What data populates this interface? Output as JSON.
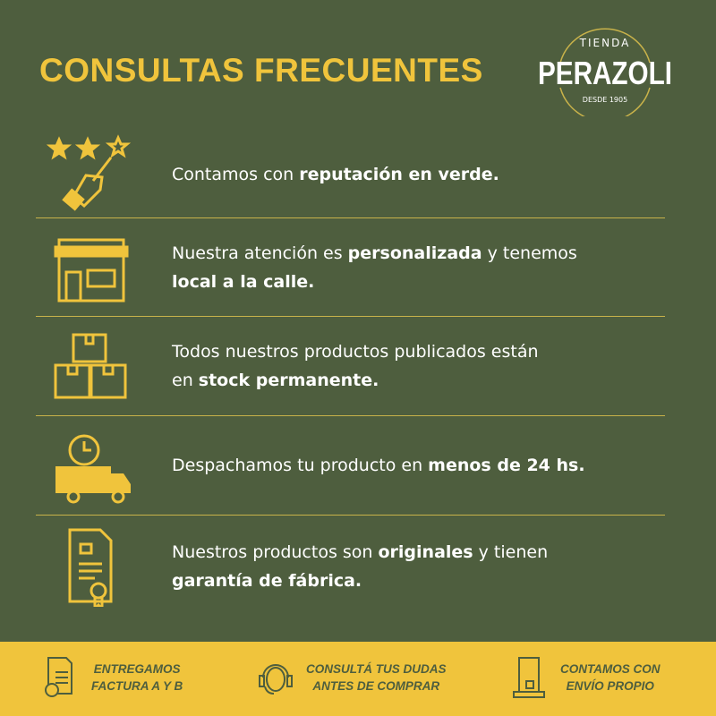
{
  "header": {
    "title": "CONSULTAS FRECUENTES"
  },
  "logo": {
    "top": "TIENDA",
    "name": "PERAZOLI",
    "bottom": "DESDE 1905"
  },
  "items": [
    {
      "icon": "rating-stars-hand-icon",
      "pre": "Contamos con ",
      "bold": "reputación en verde.",
      "mid": "",
      "bold2": ""
    },
    {
      "icon": "storefront-icon",
      "pre": "Nuestra atención es ",
      "bold": "personalizada",
      "mid": " y tenemos",
      "bold2": "local a la calle."
    },
    {
      "icon": "boxes-icon",
      "pre": "Todos nuestros productos publicados están",
      "bold": "",
      "mid": "en ",
      "bold2": "stock permanente."
    },
    {
      "icon": "delivery-truck-clock-icon",
      "pre": "Despachamos tu producto en ",
      "bold": "menos de 24 hs.",
      "mid": "",
      "bold2": ""
    },
    {
      "icon": "certificate-icon",
      "pre": "Nuestros productos son ",
      "bold": "originales",
      "mid": " y tienen",
      "bold2": "garantía de fábrica."
    }
  ],
  "footer": [
    {
      "icon": "invoice-icon",
      "l1": "ENTREGAMOS",
      "l2": "FACTURA A Y B"
    },
    {
      "icon": "headset-support-icon",
      "l1": "CONSULTÁ TUS DUDAS",
      "l2": "ANTES DE COMPRAR"
    },
    {
      "icon": "door-package-icon",
      "l1": "CONTAMOS CON",
      "l2": "ENVÍO PROPIO"
    }
  ],
  "colors": {
    "background": "#4e5e3e",
    "accent": "#f0c43c"
  }
}
